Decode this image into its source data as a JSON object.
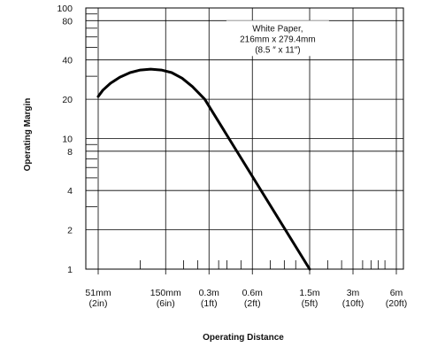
{
  "chart_data": {
    "type": "line",
    "title": "",
    "xlabel": "Operating Distance",
    "ylabel": "Operating Margin",
    "y_scale": "log",
    "x_scale": "log",
    "ylim": [
      1,
      100
    ],
    "xlim_m": [
      0.051,
      6
    ],
    "y_ticks": [
      {
        "value": 1,
        "label": "1"
      },
      {
        "value": 2,
        "label": "2"
      },
      {
        "value": 4,
        "label": "4"
      },
      {
        "value": 8,
        "label": "8"
      },
      {
        "value": 10,
        "label": "10"
      },
      {
        "value": 20,
        "label": "20"
      },
      {
        "value": 40,
        "label": "40"
      },
      {
        "value": 80,
        "label": "80"
      },
      {
        "value": 100,
        "label": "100"
      }
    ],
    "x_ticks": [
      {
        "value": 0.051,
        "label1": "51mm",
        "label2": "(2in)"
      },
      {
        "value": 0.15,
        "label1": "150mm",
        "label2": "(6in)"
      },
      {
        "value": 0.3,
        "label1": "0.3m",
        "label2": "(1ft)"
      },
      {
        "value": 0.6,
        "label1": "0.6m",
        "label2": "(2ft)"
      },
      {
        "value": 1.5,
        "label1": "1.5m",
        "label2": "(5ft)"
      },
      {
        "value": 3,
        "label1": "3m",
        "label2": "(10ft)"
      },
      {
        "value": 6,
        "label1": "6m",
        "label2": "(20ft)"
      }
    ],
    "annotation": {
      "lines": [
        "White Paper,",
        "216mm x 279.4mm",
        "(8.5 ″ x 11″)"
      ],
      "anchor_x": 0.9,
      "anchor_y": 55
    },
    "series": [
      {
        "points": [
          {
            "x": 0.051,
            "y": 21
          },
          {
            "x": 0.055,
            "y": 23.5
          },
          {
            "x": 0.062,
            "y": 26.5
          },
          {
            "x": 0.072,
            "y": 29.5
          },
          {
            "x": 0.085,
            "y": 32
          },
          {
            "x": 0.1,
            "y": 33.5
          },
          {
            "x": 0.118,
            "y": 34
          },
          {
            "x": 0.14,
            "y": 33.5
          },
          {
            "x": 0.165,
            "y": 32
          },
          {
            "x": 0.195,
            "y": 29
          },
          {
            "x": 0.23,
            "y": 25
          },
          {
            "x": 0.28,
            "y": 20
          },
          {
            "x": 1.5,
            "y": 1
          }
        ]
      }
    ]
  }
}
